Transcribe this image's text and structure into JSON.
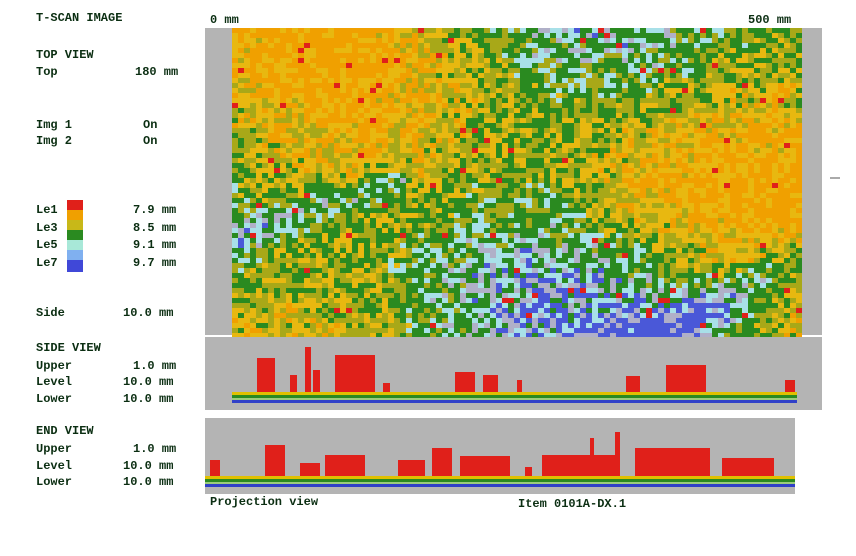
{
  "header": {
    "title": "T-SCAN IMAGE",
    "scale_start": "0 mm",
    "scale_end": "500 mm"
  },
  "top_view": {
    "title": "TOP VIEW",
    "top_label": "Top",
    "top_value": "180 mm",
    "img1_label": "Img 1",
    "img1_value": "On",
    "img2_label": "Img 2",
    "img2_value": "On",
    "legend": [
      {
        "label": "Le1",
        "value": "7.9 mm"
      },
      {
        "label": "Le3",
        "value": "8.5 mm"
      },
      {
        "label": "Le5",
        "value": "9.1 mm"
      },
      {
        "label": "Le7",
        "value": "9.7 mm"
      }
    ],
    "side_label": "Side",
    "side_value": "10.0 mm"
  },
  "side_view": {
    "title": "SIDE VIEW",
    "rows": [
      {
        "label": "Upper",
        "value": "1.0 mm"
      },
      {
        "label": "Level",
        "value": "10.0 mm"
      },
      {
        "label": "Lower",
        "value": "10.0 mm"
      }
    ]
  },
  "end_view": {
    "title": "END VIEW",
    "rows": [
      {
        "label": "Upper",
        "value": "1.0 mm"
      },
      {
        "label": "Level",
        "value": "10.0 mm"
      },
      {
        "label": "Lower",
        "value": "10.0 mm"
      }
    ]
  },
  "footer": {
    "mode": "Projection view",
    "item": "Item 0101A-DX.1"
  }
}
